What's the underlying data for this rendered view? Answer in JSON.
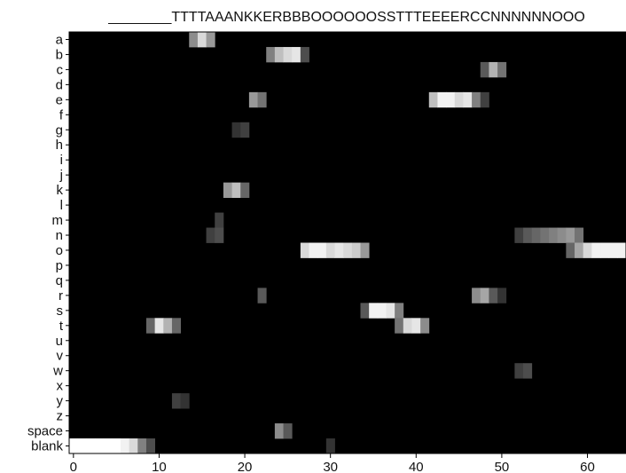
{
  "chart_data": {
    "type": "heatmap",
    "title": "________TTTTAAANKKERBBBOOOOOOSSTTTEEEERCCNNNNNNOOO",
    "xlabel": "",
    "ylabel": "",
    "x_tick_labels": [
      "0",
      "10",
      "20",
      "30",
      "40",
      "50",
      "60"
    ],
    "x_ticks": [
      0,
      10,
      20,
      30,
      40,
      50,
      60
    ],
    "xlim": [
      0,
      65
    ],
    "rows": [
      "a",
      "b",
      "c",
      "d",
      "e",
      "f",
      "g",
      "h",
      "i",
      "j",
      "k",
      "l",
      "m",
      "n",
      "o",
      "p",
      "q",
      "r",
      "s",
      "t",
      "u",
      "v",
      "w",
      "x",
      "y",
      "z",
      "space",
      "blank"
    ],
    "colormap": "gray",
    "cells": [
      {
        "row": "a",
        "x": 14,
        "v": 0.55
      },
      {
        "row": "a",
        "x": 15,
        "v": 0.85
      },
      {
        "row": "a",
        "x": 16,
        "v": 0.6
      },
      {
        "row": "b",
        "x": 23,
        "v": 0.5
      },
      {
        "row": "b",
        "x": 24,
        "v": 0.75
      },
      {
        "row": "b",
        "x": 25,
        "v": 0.85
      },
      {
        "row": "b",
        "x": 26,
        "v": 0.9
      },
      {
        "row": "b",
        "x": 27,
        "v": 0.3
      },
      {
        "row": "c",
        "x": 48,
        "v": 0.35
      },
      {
        "row": "c",
        "x": 49,
        "v": 0.7
      },
      {
        "row": "c",
        "x": 50,
        "v": 0.45
      },
      {
        "row": "e",
        "x": 21,
        "v": 0.6
      },
      {
        "row": "e",
        "x": 22,
        "v": 0.45
      },
      {
        "row": "e",
        "x": 42,
        "v": 0.75
      },
      {
        "row": "e",
        "x": 43,
        "v": 0.95
      },
      {
        "row": "e",
        "x": 44,
        "v": 0.95
      },
      {
        "row": "e",
        "x": 45,
        "v": 0.85
      },
      {
        "row": "e",
        "x": 46,
        "v": 0.9
      },
      {
        "row": "e",
        "x": 47,
        "v": 0.5
      },
      {
        "row": "e",
        "x": 48,
        "v": 0.25
      },
      {
        "row": "g",
        "x": 19,
        "v": 0.2
      },
      {
        "row": "g",
        "x": 20,
        "v": 0.25
      },
      {
        "row": "k",
        "x": 18,
        "v": 0.6
      },
      {
        "row": "k",
        "x": 19,
        "v": 0.75
      },
      {
        "row": "k",
        "x": 20,
        "v": 0.4
      },
      {
        "row": "m",
        "x": 17,
        "v": 0.25
      },
      {
        "row": "n",
        "x": 16,
        "v": 0.25
      },
      {
        "row": "n",
        "x": 17,
        "v": 0.3
      },
      {
        "row": "n",
        "x": 52,
        "v": 0.25
      },
      {
        "row": "n",
        "x": 53,
        "v": 0.35
      },
      {
        "row": "n",
        "x": 54,
        "v": 0.4
      },
      {
        "row": "n",
        "x": 55,
        "v": 0.45
      },
      {
        "row": "n",
        "x": 56,
        "v": 0.5
      },
      {
        "row": "n",
        "x": 57,
        "v": 0.55
      },
      {
        "row": "n",
        "x": 58,
        "v": 0.6
      },
      {
        "row": "n",
        "x": 59,
        "v": 0.45
      },
      {
        "row": "o",
        "x": 27,
        "v": 0.85
      },
      {
        "row": "o",
        "x": 28,
        "v": 0.95
      },
      {
        "row": "o",
        "x": 29,
        "v": 0.95
      },
      {
        "row": "o",
        "x": 30,
        "v": 0.85
      },
      {
        "row": "o",
        "x": 31,
        "v": 0.9
      },
      {
        "row": "o",
        "x": 32,
        "v": 0.85
      },
      {
        "row": "o",
        "x": 33,
        "v": 0.8
      },
      {
        "row": "o",
        "x": 34,
        "v": 0.6
      },
      {
        "row": "o",
        "x": 58,
        "v": 0.4
      },
      {
        "row": "o",
        "x": 59,
        "v": 0.65
      },
      {
        "row": "o",
        "x": 60,
        "v": 0.85
      },
      {
        "row": "o",
        "x": 61,
        "v": 0.95
      },
      {
        "row": "o",
        "x": 62,
        "v": 0.95
      },
      {
        "row": "o",
        "x": 63,
        "v": 0.95
      },
      {
        "row": "o",
        "x": 64,
        "v": 0.95
      },
      {
        "row": "r",
        "x": 22,
        "v": 0.35
      },
      {
        "row": "r",
        "x": 47,
        "v": 0.55
      },
      {
        "row": "r",
        "x": 48,
        "v": 0.65
      },
      {
        "row": "r",
        "x": 49,
        "v": 0.35
      },
      {
        "row": "r",
        "x": 50,
        "v": 0.2
      },
      {
        "row": "s",
        "x": 34,
        "v": 0.35
      },
      {
        "row": "s",
        "x": 35,
        "v": 0.95
      },
      {
        "row": "s",
        "x": 36,
        "v": 0.95
      },
      {
        "row": "s",
        "x": 37,
        "v": 0.9
      },
      {
        "row": "s",
        "x": 38,
        "v": 0.5
      },
      {
        "row": "t",
        "x": 9,
        "v": 0.4
      },
      {
        "row": "t",
        "x": 10,
        "v": 0.9
      },
      {
        "row": "t",
        "x": 11,
        "v": 0.7
      },
      {
        "row": "t",
        "x": 12,
        "v": 0.4
      },
      {
        "row": "t",
        "x": 38,
        "v": 0.45
      },
      {
        "row": "t",
        "x": 39,
        "v": 0.85
      },
      {
        "row": "t",
        "x": 40,
        "v": 0.9
      },
      {
        "row": "t",
        "x": 41,
        "v": 0.55
      },
      {
        "row": "w",
        "x": 52,
        "v": 0.25
      },
      {
        "row": "w",
        "x": 53,
        "v": 0.3
      },
      {
        "row": "y",
        "x": 12,
        "v": 0.25
      },
      {
        "row": "y",
        "x": 13,
        "v": 0.2
      },
      {
        "row": "space",
        "x": 24,
        "v": 0.55
      },
      {
        "row": "space",
        "x": 25,
        "v": 0.35
      },
      {
        "row": "blank",
        "x": 0,
        "v": 1.0
      },
      {
        "row": "blank",
        "x": 1,
        "v": 1.0
      },
      {
        "row": "blank",
        "x": 2,
        "v": 1.0
      },
      {
        "row": "blank",
        "x": 3,
        "v": 1.0
      },
      {
        "row": "blank",
        "x": 4,
        "v": 1.0
      },
      {
        "row": "blank",
        "x": 5,
        "v": 1.0
      },
      {
        "row": "blank",
        "x": 6,
        "v": 0.95
      },
      {
        "row": "blank",
        "x": 7,
        "v": 0.85
      },
      {
        "row": "blank",
        "x": 8,
        "v": 0.5
      },
      {
        "row": "blank",
        "x": 9,
        "v": 0.3
      },
      {
        "row": "blank",
        "x": 30,
        "v": 0.2
      }
    ],
    "grid": false,
    "legend": "none"
  }
}
